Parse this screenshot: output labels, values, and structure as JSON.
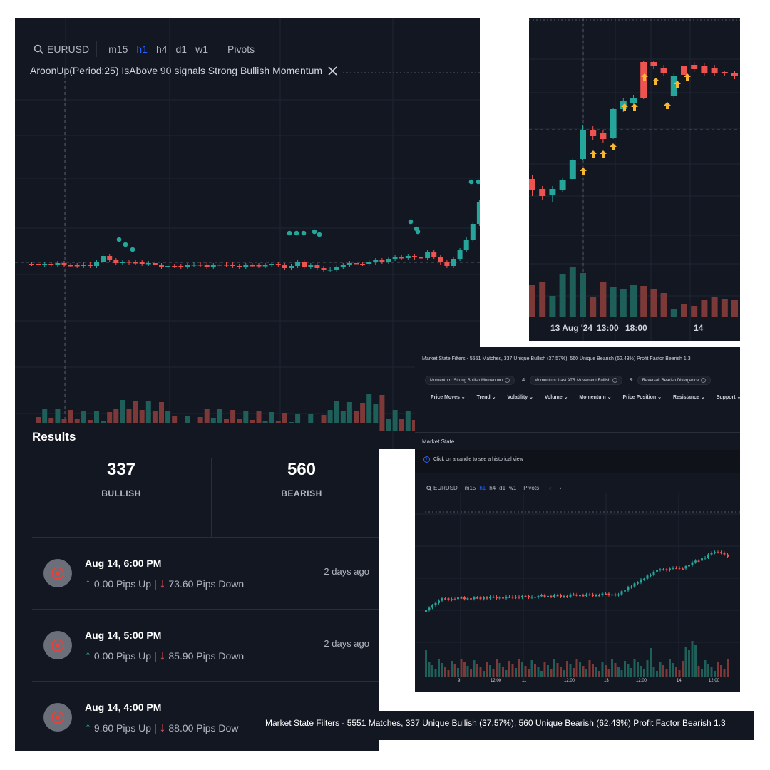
{
  "colors": {
    "bg": "#131722",
    "bull": "#26a69a",
    "bear": "#ef5350",
    "active": "#2962ff",
    "arrow": "#f7b731"
  },
  "main_chart": {
    "symbol": "EURUSD",
    "timeframes": [
      "m15",
      "h1",
      "h4",
      "d1",
      "w1"
    ],
    "active_timeframe": "h1",
    "pivots_label": "Pivots",
    "signal_text": "AroonUp(Period:25) IsAbove 90 signals Strong Bullish Momentum"
  },
  "zoom_chart": {
    "x_labels": [
      "13 Aug '24",
      "13:00",
      "18:00",
      "14"
    ]
  },
  "results": {
    "title": "Results",
    "bullish_count": "337",
    "bullish_label": "BULLISH",
    "bearish_count": "560",
    "bearish_label": "BEARISH",
    "items": [
      {
        "date": "Aug 14, 6:00 PM",
        "up": "0.00 Pips Up",
        "down": "73.60 Pips Down",
        "ago": "2 days ago"
      },
      {
        "date": "Aug 14, 5:00 PM",
        "up": "0.00 Pips Up",
        "down": "85.90 Pips Down",
        "ago": "2 days ago"
      },
      {
        "date": "Aug 14, 4:00 PM",
        "up": "9.60 Pips Up",
        "down": "88.00 Pips Dow",
        "ago": ""
      }
    ]
  },
  "market_filters": {
    "header": "Market State Filters - 5551 Matches, 337 Unique Bullish (37.57%), 560 Unique Bearish (62.43%) Profit Factor Bearish 1.3",
    "chips": [
      "Momentum: Strong Bullish Momentum",
      "Momentum: Last ATR Movement Bullish",
      "Reversal: Bearish Divergence"
    ],
    "chip_joiner": "&",
    "menus": [
      "Price Moves",
      "Trend",
      "Volatility",
      "Volume",
      "Momentum",
      "Price Position",
      "Resistance",
      "Support"
    ],
    "section_title": "Market State",
    "info_text": "Click on a candle to see a historical view",
    "mini_symbol": "EURUSD",
    "mini_timeframes": [
      "m15",
      "h1",
      "h4",
      "d1",
      "w1"
    ],
    "mini_pivots": "Pivots",
    "mini_x_labels": [
      "9",
      "12:00",
      "11",
      "12:00",
      "13",
      "12:00",
      "14",
      "12:00"
    ]
  },
  "caption": "Market State Filters - 5551 Matches, 337 Unique Bullish (37.57%), 560 Unique Bearish (62.43%) Profit Factor Bearish 1.3"
}
